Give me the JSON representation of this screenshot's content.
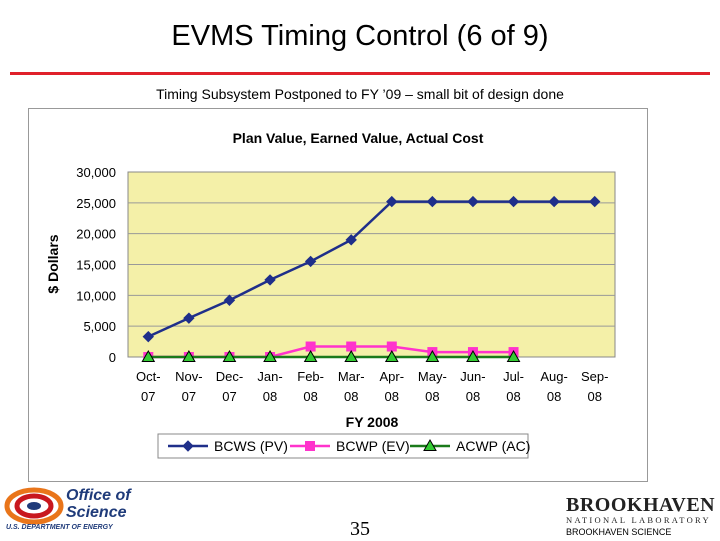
{
  "slide": {
    "title": "EVMS Timing Control (6 of 9)",
    "subtitle": "Timing Subsystem Postponed to FY ’09 – small bit of design done",
    "page_number": "35",
    "accent_color": "#e0202a"
  },
  "footer": {
    "office_line1": "Office of",
    "office_line2": "Science",
    "doe_text": "U.S. DEPARTMENT OF ENERGY",
    "bnl_name": "BROOKHAVEN",
    "bnl_sub": "NATIONAL LABORATORY",
    "bnl_assoc": "BROOKHAVEN SCIENCE"
  },
  "chart_data": {
    "type": "line",
    "title": "Plan Value, Earned Value, Actual Cost",
    "xlabel": "FY 2008",
    "ylabel": "$ Dollars",
    "ylim": [
      0,
      30000
    ],
    "yticks": [
      0,
      5000,
      10000,
      15000,
      20000,
      25000,
      30000
    ],
    "ytick_labels": [
      "0",
      "5,000",
      "10,000",
      "15,000",
      "20,000",
      "25,000",
      "30,000"
    ],
    "categories": [
      [
        "Oct-",
        "07"
      ],
      [
        "Nov-",
        "07"
      ],
      [
        "Dec-",
        "07"
      ],
      [
        "Jan-",
        "08"
      ],
      [
        "Feb-",
        "08"
      ],
      [
        "Mar-",
        "08"
      ],
      [
        "Apr-",
        "08"
      ],
      [
        "May-",
        "08"
      ],
      [
        "Jun-",
        "08"
      ],
      [
        "Jul-",
        "08"
      ],
      [
        "Aug-",
        "08"
      ],
      [
        "Sep-",
        "08"
      ]
    ],
    "grid": true,
    "legend": "bottom",
    "plot_bg": "#f4f0a8",
    "series": [
      {
        "name": "BCWS (PV)",
        "color": "#1f2f8a",
        "marker": "diamond",
        "values": [
          3300,
          6300,
          9200,
          12500,
          15500,
          19000,
          25200,
          25200,
          25200,
          25200,
          25200,
          25200
        ]
      },
      {
        "name": "BCWP (EV)",
        "color": "#ff33cc",
        "marker": "square",
        "values": [
          0,
          0,
          0,
          0,
          1700,
          1700,
          1700,
          800,
          800,
          800,
          null,
          null
        ]
      },
      {
        "name": "ACWP (AC)",
        "color": "#1a7a1a",
        "marker": "triangle",
        "values": [
          0,
          0,
          0,
          0,
          0,
          0,
          0,
          0,
          0,
          0,
          null,
          null
        ]
      }
    ]
  }
}
